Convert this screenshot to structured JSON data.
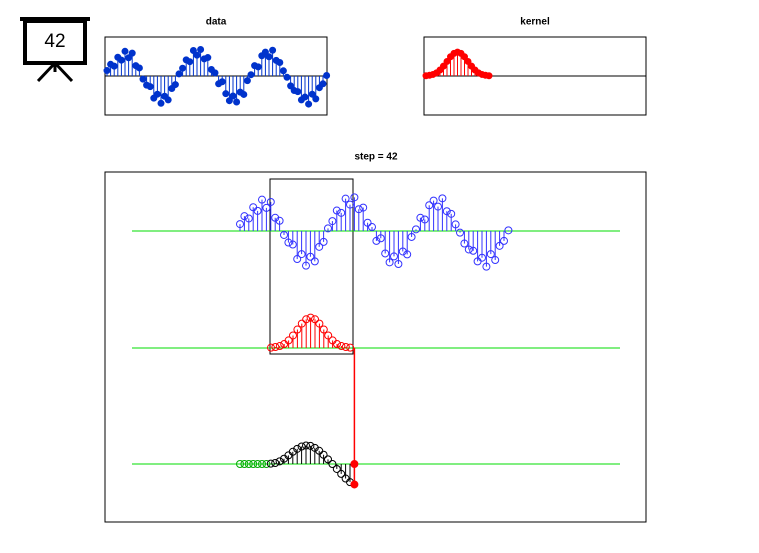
{
  "badge": "42",
  "chart_data": [
    {
      "type": "stem",
      "title": "data",
      "color": "#0033cc",
      "ylim": [
        -1.5,
        1.5
      ],
      "values": [
        0.21,
        0.45,
        0.38,
        0.72,
        0.61,
        0.95,
        0.7,
        0.88,
        0.4,
        0.31,
        -0.12,
        -0.35,
        -0.41,
        -0.85,
        -0.7,
        -1.05,
        -0.78,
        -0.92,
        -0.48,
        -0.33,
        0.08,
        0.3,
        0.62,
        0.55,
        0.98,
        0.8,
        1.02,
        0.66,
        0.71,
        0.25,
        0.12,
        -0.3,
        -0.22,
        -0.68,
        -0.95,
        -0.77,
        -1.0,
        -0.62,
        -0.71,
        -0.18,
        0.05,
        0.4,
        0.35,
        0.78,
        0.92,
        0.74,
        0.99,
        0.6,
        0.52,
        0.2,
        -0.05,
        -0.38,
        -0.56,
        -0.6,
        -0.92,
        -0.81,
        -1.08,
        -0.7,
        -0.88,
        -0.45,
        -0.3,
        0.02
      ]
    },
    {
      "type": "stem",
      "title": "kernel",
      "color": "#ff0000",
      "ylim": [
        -1.5,
        1.5
      ],
      "values": [
        0.01,
        0.03,
        0.06,
        0.12,
        0.23,
        0.38,
        0.56,
        0.74,
        0.87,
        0.92,
        0.87,
        0.74,
        0.56,
        0.38,
        0.23,
        0.12,
        0.06,
        0.03,
        0.01
      ]
    },
    {
      "type": "convolution",
      "title": "step = 42",
      "line_color": "#00dd00",
      "data_color": "#3333ff",
      "kernel_color": "#ff0000",
      "series": [
        {
          "name": "leading",
          "color": "#00aa00",
          "values": [
            0,
            0,
            0,
            0,
            0,
            0,
            0
          ]
        },
        {
          "name": "output",
          "color": "#000000",
          "values": [
            0.01,
            0.03,
            0.08,
            0.16,
            0.26,
            0.37,
            0.46,
            0.53,
            0.56,
            0.55,
            0.49,
            0.4,
            0.28,
            0.14,
            0.0,
            -0.15,
            -0.3,
            -0.44,
            -0.55,
            -0.62
          ]
        }
      ]
    }
  ]
}
